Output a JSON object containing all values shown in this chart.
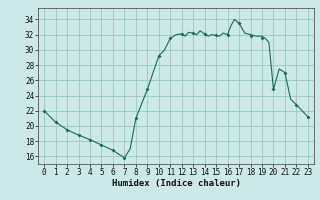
{
  "title": "",
  "xlabel": "Humidex (Indice chaleur)",
  "ylabel": "",
  "xlim": [
    -0.5,
    23.5
  ],
  "ylim": [
    15,
    35.5
  ],
  "yticks": [
    16,
    18,
    20,
    22,
    24,
    26,
    28,
    30,
    32,
    34
  ],
  "xticks": [
    0,
    1,
    2,
    3,
    4,
    5,
    6,
    7,
    8,
    9,
    10,
    11,
    12,
    13,
    14,
    15,
    16,
    17,
    18,
    19,
    20,
    21,
    22,
    23
  ],
  "bg_color": "#cce8e8",
  "grid_color": "#99ccbb",
  "line_color": "#1a6b5a",
  "marker_color": "#1a6b5a",
  "x": [
    0,
    1,
    2,
    3,
    4,
    5,
    6,
    7,
    7.5,
    8,
    9,
    10,
    10.5,
    11,
    11.5,
    12,
    12.3,
    12.6,
    13,
    13.3,
    13.6,
    14,
    14.3,
    14.6,
    15,
    15.3,
    15.6,
    16,
    16.3,
    16.6,
    17,
    17.5,
    18,
    18.5,
    19,
    19.3,
    19.6,
    20,
    20.5,
    21,
    21.5,
    22,
    22.5,
    23
  ],
  "y": [
    22,
    20.5,
    19.5,
    18.8,
    18.2,
    17.5,
    16.8,
    15.8,
    17.0,
    21.0,
    24.8,
    29.2,
    30.0,
    31.5,
    32.0,
    32.1,
    31.8,
    32.3,
    32.2,
    32.0,
    32.5,
    32.1,
    31.8,
    32.0,
    31.9,
    31.8,
    32.2,
    32.0,
    33.2,
    34.0,
    33.5,
    32.2,
    32.0,
    31.8,
    31.8,
    31.5,
    31.0,
    24.8,
    27.5,
    27.0,
    23.5,
    22.8,
    22.0,
    21.2
  ],
  "marker_x": [
    0,
    1,
    2,
    3,
    4,
    5,
    6,
    7,
    8,
    9,
    10,
    11,
    12,
    13,
    14,
    15,
    16,
    17,
    18,
    19,
    20,
    21,
    22,
    23
  ],
  "marker_y": [
    22,
    20.5,
    19.5,
    18.8,
    18.2,
    17.5,
    16.8,
    15.8,
    21.0,
    24.8,
    29.2,
    31.5,
    32.1,
    32.2,
    32.1,
    31.9,
    32.0,
    33.5,
    31.8,
    31.5,
    24.8,
    27.0,
    22.8,
    21.2
  ],
  "font_color": "#111111",
  "tick_fontsize": 5.5,
  "label_fontsize": 6.5
}
